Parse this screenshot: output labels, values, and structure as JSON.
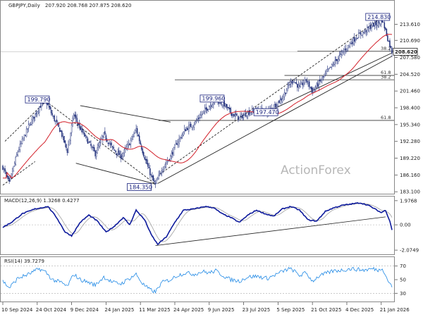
{
  "header": {
    "symbol": "GBPJPY,Daily",
    "ohlc": "207.920 208.768 207.875 208.620",
    "macd": "MACD(12,26,9) 1.3268 0.4277",
    "rsi": "RSI(14) 39.7279"
  },
  "watermark": "ActionForex",
  "colors": {
    "candle": "#1b2a78",
    "ma": "#d3202a",
    "macd_line": "#0d1a9c",
    "signal_line": "#9e9e9e",
    "rsi_line": "#1e88e5",
    "trend_line": "#222222",
    "price_box": "#222222"
  },
  "chart_data": [
    {
      "type": "candlestick",
      "panel": "price",
      "ylim": [
        183.0,
        216.5
      ],
      "y_ticks": [
        {
          "v": 213.61,
          "label": "213.610"
        },
        {
          "v": 210.69,
          "label": "210.690"
        },
        {
          "v": 207.58,
          "label": "207.580"
        },
        {
          "v": 204.52,
          "label": "204.520"
        },
        {
          "v": 201.46,
          "label": "201.460"
        },
        {
          "v": 198.4,
          "label": "198.400"
        },
        {
          "v": 195.34,
          "label": "195.340"
        },
        {
          "v": 192.28,
          "label": "192.280"
        },
        {
          "v": 189.22,
          "label": "189.220"
        },
        {
          "v": 186.16,
          "label": "186.160"
        },
        {
          "v": 183.1,
          "label": "183.100"
        }
      ],
      "x_ticks": [
        {
          "i": 0,
          "label": "10 Sep 2024"
        },
        {
          "i": 32,
          "label": "24 Oct 2024"
        },
        {
          "i": 64,
          "label": "9 Dec 2024"
        },
        {
          "i": 96,
          "label": "24 Jan 2025"
        },
        {
          "i": 128,
          "label": "11 Mar 2025"
        },
        {
          "i": 160,
          "label": "24 Apr 2025"
        },
        {
          "i": 192,
          "label": "9 Jun 2025"
        },
        {
          "i": 224,
          "label": "23 Jul 2025"
        },
        {
          "i": 256,
          "label": "5 Sep 2025"
        },
        {
          "i": 288,
          "label": "21 Oct 2025"
        },
        {
          "i": 320,
          "label": "4 Dec 2025"
        },
        {
          "i": 352,
          "label": "21 Jan 2026"
        }
      ],
      "n_bars": 363,
      "anchors": [
        [
          0,
          187.6
        ],
        [
          6,
          184.6
        ],
        [
          14,
          190.5
        ],
        [
          24,
          195.0
        ],
        [
          34,
          198.6
        ],
        [
          40,
          199.7
        ],
        [
          46,
          197.0
        ],
        [
          54,
          194.0
        ],
        [
          60,
          190.5
        ],
        [
          66,
          197.2
        ],
        [
          72,
          194.6
        ],
        [
          80,
          192.0
        ],
        [
          86,
          190.0
        ],
        [
          94,
          193.5
        ],
        [
          102,
          191.0
        ],
        [
          110,
          189.5
        ],
        [
          118,
          192.0
        ],
        [
          124,
          194.5
        ],
        [
          130,
          190.5
        ],
        [
          136,
          187.0
        ],
        [
          140,
          185.0
        ],
        [
          142,
          184.4
        ],
        [
          148,
          187.3
        ],
        [
          156,
          189.5
        ],
        [
          162,
          192.0
        ],
        [
          170,
          194.5
        ],
        [
          178,
          195.5
        ],
        [
          186,
          197.5
        ],
        [
          192,
          198.7
        ],
        [
          198,
          199.8
        ],
        [
          206,
          199.0
        ],
        [
          212,
          197.5
        ],
        [
          220,
          196.5
        ],
        [
          228,
          197.5
        ],
        [
          236,
          198.0
        ],
        [
          246,
          197.7
        ],
        [
          252,
          198.6
        ],
        [
          260,
          200.2
        ],
        [
          266,
          202.5
        ],
        [
          270,
          203.5
        ],
        [
          276,
          202.0
        ],
        [
          282,
          203.5
        ],
        [
          288,
          201.4
        ],
        [
          294,
          202.9
        ],
        [
          302,
          205.0
        ],
        [
          308,
          206.5
        ],
        [
          316,
          208.5
        ],
        [
          324,
          210.3
        ],
        [
          330,
          211.5
        ],
        [
          336,
          212.2
        ],
        [
          344,
          213.5
        ],
        [
          350,
          213.8
        ],
        [
          353,
          214.4
        ],
        [
          356,
          212.5
        ],
        [
          358,
          211.0
        ],
        [
          360,
          209.8
        ],
        [
          362,
          208.6
        ]
      ],
      "last_price": "208.620",
      "labels": [
        {
          "text": "214.830",
          "i": 352,
          "v": 214.83
        },
        {
          "text": "199.790",
          "i": 38,
          "v": 199.79
        },
        {
          "text": "199.960",
          "i": 198,
          "v": 199.96
        },
        {
          "text": "197.470",
          "i": 248,
          "v": 197.47
        },
        {
          "text": "184.350",
          "i": 142,
          "v": 184.35
        }
      ],
      "fib_levels": [
        {
          "text": "38.2",
          "v": 208.7,
          "i_start": 274
        },
        {
          "text": "61.8",
          "v": 204.3,
          "i_start": 262
        },
        {
          "text": "38.2",
          "v": 203.5,
          "i_start": 160
        },
        {
          "text": "61.8",
          "v": 196.1,
          "i_start": 145
        }
      ],
      "channel_lines": [
        {
          "i1": 2,
          "v1": 192.3,
          "i2": 40,
          "v2": 199.6,
          "dash": true
        },
        {
          "i1": 0,
          "v1": 184.3,
          "i2": 30,
          "v2": 188.6,
          "dash": true
        },
        {
          "i1": 40,
          "v1": 199.6,
          "i2": 142,
          "v2": 184.5,
          "dash": true
        },
        {
          "i1": 72,
          "v1": 198.8,
          "i2": 156,
          "v2": 195.8,
          "dash": false
        },
        {
          "i1": 68,
          "v1": 188.3,
          "i2": 142,
          "v2": 184.5,
          "dash": false
        },
        {
          "i1": 144,
          "v1": 184.6,
          "i2": 362,
          "v2": 207.8,
          "dash": false
        },
        {
          "i1": 146,
          "v1": 186.3,
          "i2": 352,
          "v2": 214.8,
          "dash": true
        },
        {
          "i1": 252,
          "v1": 198.2,
          "i2": 362,
          "v2": 208.4,
          "dash": false
        }
      ]
    },
    {
      "type": "line",
      "panel": "macd",
      "ylim": [
        -2.3,
        2.2
      ],
      "y_ticks": [
        {
          "v": 1.9768,
          "label": "1.9768"
        },
        {
          "v": 0.0,
          "label": "0.00"
        },
        {
          "v": -2.0749,
          "label": "-2.0749"
        }
      ],
      "series": [
        {
          "values_anchors": [
            [
              0,
              -0.2
            ],
            [
              8,
              0.2
            ],
            [
              18,
              0.9
            ],
            [
              30,
              1.3
            ],
            [
              42,
              1.5
            ],
            [
              50,
              0.6
            ],
            [
              58,
              -0.6
            ],
            [
              64,
              -0.9
            ],
            [
              72,
              0.2
            ],
            [
              80,
              0.8
            ],
            [
              88,
              0.3
            ],
            [
              96,
              -0.6
            ],
            [
              104,
              -0.1
            ],
            [
              112,
              0.6
            ],
            [
              118,
              0.0
            ],
            [
              124,
              1.2
            ],
            [
              132,
              0.4
            ],
            [
              138,
              -0.8
            ],
            [
              144,
              -1.6
            ],
            [
              152,
              -1.0
            ],
            [
              160,
              0.2
            ],
            [
              168,
              1.2
            ],
            [
              178,
              1.3
            ],
            [
              188,
              1.5
            ],
            [
              196,
              1.4
            ],
            [
              204,
              0.9
            ],
            [
              212,
              0.6
            ],
            [
              220,
              0.2
            ],
            [
              228,
              0.8
            ],
            [
              236,
              1.2
            ],
            [
              244,
              0.9
            ],
            [
              252,
              0.7
            ],
            [
              260,
              1.3
            ],
            [
              268,
              1.5
            ],
            [
              276,
              1.2
            ],
            [
              284,
              0.4
            ],
            [
              292,
              0.3
            ],
            [
              300,
              1.1
            ],
            [
              308,
              1.4
            ],
            [
              316,
              1.6
            ],
            [
              324,
              1.7
            ],
            [
              332,
              1.8
            ],
            [
              340,
              1.6
            ],
            [
              346,
              1.3
            ],
            [
              352,
              1.0
            ],
            [
              356,
              1.2
            ],
            [
              360,
              0.3
            ],
            [
              362,
              -0.4
            ]
          ]
        }
      ],
      "trend_line": {
        "i1": 142,
        "v1": -1.7,
        "i2": 356,
        "v2": 0.65
      }
    },
    {
      "type": "line",
      "panel": "rsi",
      "ylim": [
        20,
        80
      ],
      "y_ticks": [
        {
          "v": 70,
          "label": "70"
        },
        {
          "v": 50,
          "label": "50"
        },
        {
          "v": 30,
          "label": "30"
        }
      ],
      "levels": [
        70,
        30
      ],
      "series": [
        {
          "values_anchors": [
            [
              0,
              48
            ],
            [
              6,
              38
            ],
            [
              14,
              52
            ],
            [
              24,
              58
            ],
            [
              34,
              66
            ],
            [
              40,
              61
            ],
            [
              46,
              50
            ],
            [
              54,
              46
            ],
            [
              60,
              40
            ],
            [
              66,
              58
            ],
            [
              72,
              50
            ],
            [
              80,
              46
            ],
            [
              86,
              42
            ],
            [
              94,
              54
            ],
            [
              102,
              46
            ],
            [
              110,
              44
            ],
            [
              118,
              52
            ],
            [
              124,
              58
            ],
            [
              130,
              44
            ],
            [
              136,
              36
            ],
            [
              142,
              32
            ],
            [
              148,
              46
            ],
            [
              156,
              50
            ],
            [
              162,
              56
            ],
            [
              170,
              60
            ],
            [
              178,
              58
            ],
            [
              186,
              62
            ],
            [
              192,
              60
            ],
            [
              198,
              63
            ],
            [
              206,
              55
            ],
            [
              212,
              50
            ],
            [
              220,
              48
            ],
            [
              228,
              54
            ],
            [
              236,
              55
            ],
            [
              246,
              52
            ],
            [
              252,
              56
            ],
            [
              260,
              62
            ],
            [
              266,
              66
            ],
            [
              270,
              64
            ],
            [
              276,
              56
            ],
            [
              282,
              60
            ],
            [
              288,
              48
            ],
            [
              294,
              55
            ],
            [
              302,
              60
            ],
            [
              308,
              63
            ],
            [
              316,
              64
            ],
            [
              324,
              66
            ],
            [
              330,
              65
            ],
            [
              336,
              64
            ],
            [
              344,
              66
            ],
            [
              350,
              64
            ],
            [
              353,
              68
            ],
            [
              356,
              56
            ],
            [
              358,
              50
            ],
            [
              360,
              44
            ],
            [
              362,
              39.7
            ]
          ]
        }
      ]
    }
  ]
}
